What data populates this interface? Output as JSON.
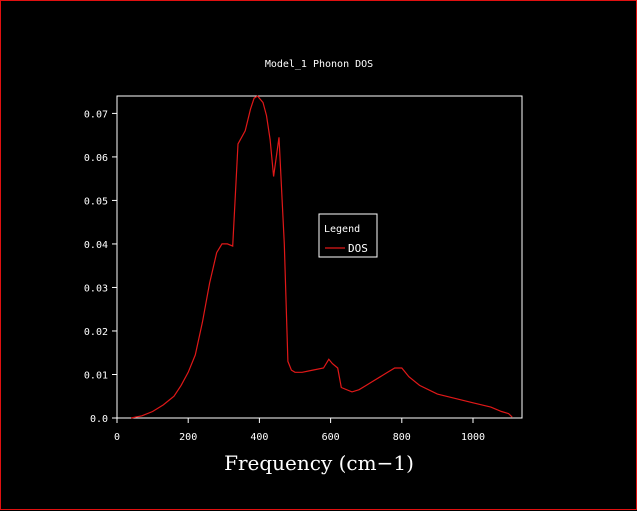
{
  "chart_data": {
    "type": "line",
    "title": "Model_1 Phonon DOS",
    "xlabel": "Frequency (cm−1)",
    "ylabel": "",
    "xlim": [
      0,
      1150
    ],
    "ylim": [
      0,
      0.074
    ],
    "x_ticks": [
      "0",
      "200",
      "400",
      "600",
      "800",
      "1000"
    ],
    "x_tick_values": [
      0,
      200,
      400,
      600,
      800,
      1000
    ],
    "y_ticks": [
      "0.0",
      "0.01",
      "0.02",
      "0.03",
      "0.04",
      "0.05",
      "0.06",
      "0.07"
    ],
    "y_tick_values": [
      0,
      0.01,
      0.02,
      0.03,
      0.04,
      0.05,
      0.06,
      0.07
    ],
    "legend": {
      "title": "Legend",
      "position": "center-right"
    },
    "grid": false,
    "colors": {
      "background": "#000000",
      "axes": "#ffffff",
      "series": "#e01818"
    },
    "series": [
      {
        "name": "DOS",
        "x": [
          40,
          70,
          100,
          130,
          160,
          180,
          200,
          220,
          240,
          260,
          280,
          295,
          310,
          325,
          340,
          360,
          375,
          385,
          395,
          400,
          410,
          420,
          430,
          440,
          455,
          470,
          480,
          490,
          500,
          520,
          550,
          580,
          595,
          605,
          620,
          630,
          660,
          680,
          700,
          720,
          740,
          760,
          780,
          790,
          800,
          820,
          850,
          900,
          950,
          1000,
          1050,
          1080,
          1100,
          1110
        ],
        "y": [
          0.0,
          0.0005,
          0.0015,
          0.003,
          0.005,
          0.0075,
          0.0105,
          0.0145,
          0.022,
          0.031,
          0.038,
          0.04,
          0.04,
          0.0395,
          0.063,
          0.066,
          0.071,
          0.0735,
          0.074,
          0.0735,
          0.0725,
          0.0695,
          0.064,
          0.0555,
          0.0645,
          0.04,
          0.013,
          0.011,
          0.0105,
          0.0105,
          0.011,
          0.0115,
          0.0135,
          0.0125,
          0.0115,
          0.007,
          0.006,
          0.0065,
          0.0075,
          0.0085,
          0.0095,
          0.0105,
          0.0115,
          0.0115,
          0.0115,
          0.0095,
          0.0075,
          0.0055,
          0.0045,
          0.0035,
          0.0025,
          0.0015,
          0.001,
          0.0002
        ]
      }
    ]
  }
}
